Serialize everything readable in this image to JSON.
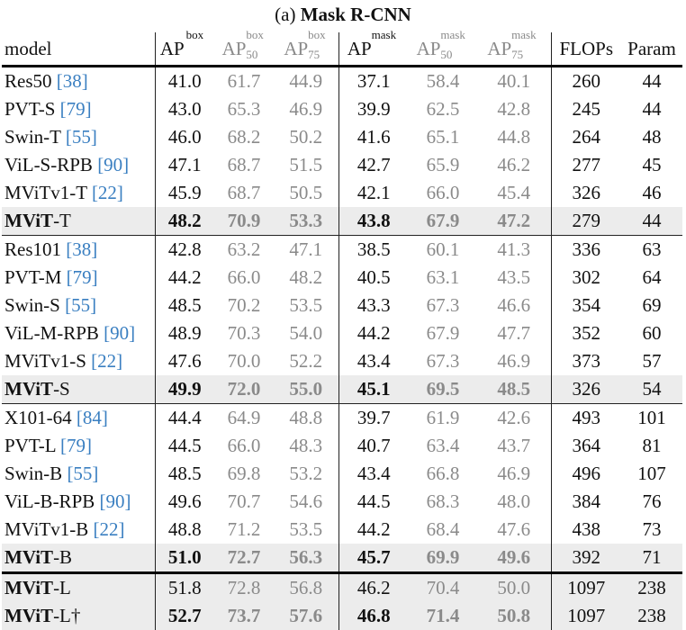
{
  "caption": {
    "prefix": "(a) ",
    "title": "Mask R-CNN"
  },
  "header": {
    "model": "model",
    "ap_box": {
      "base": "AP",
      "sup": "box",
      "sub": ""
    },
    "ap_box_50": {
      "base": "AP",
      "sup": "box",
      "sub": "50"
    },
    "ap_box_75": {
      "base": "AP",
      "sup": "box",
      "sub": "75"
    },
    "ap_mask": {
      "base": "AP",
      "sup": "mask",
      "sub": ""
    },
    "ap_mask_50": {
      "base": "AP",
      "sup": "mask",
      "sub": "50"
    },
    "ap_mask_75": {
      "base": "AP",
      "sup": "mask",
      "sub": "75"
    },
    "flops": "FLOPs",
    "param": "Param"
  },
  "rows": [
    {
      "name": "Res50 ",
      "cite": "[38]",
      "bold": false,
      "values": [
        "41.0",
        "61.7",
        "44.9",
        "37.1",
        "58.4",
        "40.1",
        "260",
        "44"
      ]
    },
    {
      "name": "PVT-S ",
      "cite": "[79]",
      "bold": false,
      "values": [
        "43.0",
        "65.3",
        "46.9",
        "39.9",
        "62.5",
        "42.8",
        "245",
        "44"
      ]
    },
    {
      "name": "Swin-T ",
      "cite": "[55]",
      "bold": false,
      "values": [
        "46.0",
        "68.2",
        "50.2",
        "41.6",
        "65.1",
        "44.8",
        "264",
        "48"
      ]
    },
    {
      "name": "ViL-S-RPB ",
      "cite": "[90]",
      "bold": false,
      "values": [
        "47.1",
        "68.7",
        "51.5",
        "42.7",
        "65.9",
        "46.2",
        "277",
        "45"
      ]
    },
    {
      "name": "MViTv1-T ",
      "cite": "[22]",
      "bold": false,
      "values": [
        "45.9",
        "68.7",
        "50.5",
        "42.1",
        "66.0",
        "45.4",
        "326",
        "46"
      ]
    },
    {
      "name_bold": "MViT",
      "name_rest": "-T",
      "bold": true,
      "values": [
        "48.2",
        "70.9",
        "53.3",
        "43.8",
        "67.9",
        "47.2",
        "279",
        "44"
      ]
    },
    {
      "name": "Res101 ",
      "cite": "[38]",
      "bold": false,
      "values": [
        "42.8",
        "63.2",
        "47.1",
        "38.5",
        "60.1",
        "41.3",
        "336",
        "63"
      ]
    },
    {
      "name": "PVT-M ",
      "cite": "[79]",
      "bold": false,
      "values": [
        "44.2",
        "66.0",
        "48.2",
        "40.5",
        "63.1",
        "43.5",
        "302",
        "64"
      ]
    },
    {
      "name": "Swin-S ",
      "cite": "[55]",
      "bold": false,
      "values": [
        "48.5",
        "70.2",
        "53.5",
        "43.3",
        "67.3",
        "46.6",
        "354",
        "69"
      ]
    },
    {
      "name": "ViL-M-RPB ",
      "cite": "[90]",
      "bold": false,
      "values": [
        "48.9",
        "70.3",
        "54.0",
        "44.2",
        "67.9",
        "47.7",
        "352",
        "60"
      ]
    },
    {
      "name": "MViTv1-S ",
      "cite": "[22]",
      "bold": false,
      "values": [
        "47.6",
        "70.0",
        "52.2",
        "43.4",
        "67.3",
        "46.9",
        "373",
        "57"
      ]
    },
    {
      "name_bold": "MViT",
      "name_rest": "-S",
      "bold": true,
      "values": [
        "49.9",
        "72.0",
        "55.0",
        "45.1",
        "69.5",
        "48.5",
        "326",
        "54"
      ]
    },
    {
      "name": "X101-64 ",
      "cite": "[84]",
      "bold": false,
      "values": [
        "44.4",
        "64.9",
        "48.8",
        "39.7",
        "61.9",
        "42.6",
        "493",
        "101"
      ]
    },
    {
      "name": "PVT-L ",
      "cite": "[79]",
      "bold": false,
      "values": [
        "44.5",
        "66.0",
        "48.3",
        "40.7",
        "63.4",
        "43.7",
        "364",
        "81"
      ]
    },
    {
      "name": "Swin-B ",
      "cite": "[55]",
      "bold": false,
      "values": [
        "48.5",
        "69.8",
        "53.2",
        "43.4",
        "66.8",
        "46.9",
        "496",
        "107"
      ]
    },
    {
      "name": "ViL-B-RPB ",
      "cite": "[90]",
      "bold": false,
      "values": [
        "49.6",
        "70.7",
        "54.6",
        "44.5",
        "68.3",
        "48.0",
        "384",
        "76"
      ]
    },
    {
      "name": "MViTv1-B ",
      "cite": "[22]",
      "bold": false,
      "values": [
        "48.8",
        "71.2",
        "53.5",
        "44.2",
        "68.4",
        "47.6",
        "438",
        "73"
      ]
    },
    {
      "name_bold": "MViT",
      "name_rest": "-B",
      "bold": true,
      "values": [
        "51.0",
        "72.7",
        "56.3",
        "45.7",
        "69.9",
        "49.6",
        "392",
        "71"
      ]
    },
    {
      "name_bold": "MViT",
      "name_rest": "-L",
      "bold": false,
      "values": [
        "51.8",
        "72.8",
        "56.8",
        "46.2",
        "70.4",
        "50.0",
        "1097",
        "238"
      ]
    },
    {
      "name_bold": "MViT",
      "name_rest": "-L†",
      "bold": true,
      "values": [
        "52.7",
        "73.7",
        "57.6",
        "46.8",
        "71.4",
        "50.8",
        "1097",
        "238"
      ]
    }
  ]
}
